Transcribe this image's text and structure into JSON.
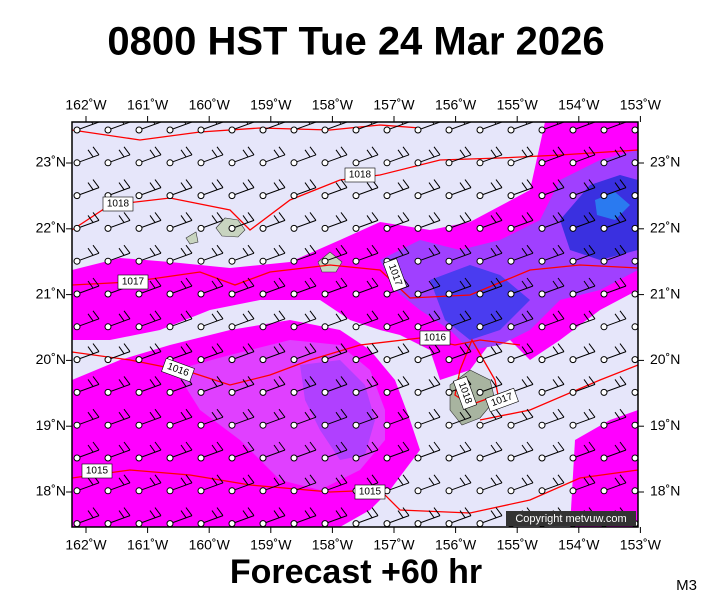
{
  "title": "0800 HST Tue 24 Mar 2026",
  "footer": "Forecast +60 hr",
  "model": "M3",
  "copyright": "Copyright metvuw.com",
  "lon_labels": [
    "162˚W",
    "161˚W",
    "160˚W",
    "159˚W",
    "158˚W",
    "157˚W",
    "156˚W",
    "155˚W",
    "154˚W",
    "153˚W"
  ],
  "lat_labels": [
    "23˚N",
    "22˚N",
    "21˚N",
    "20˚N",
    "19˚N",
    "18˚N"
  ],
  "isobar_labels": [
    "1018",
    "1018",
    "1017",
    "1017",
    "1016",
    "1016",
    "1015",
    "1015",
    "1018",
    "1017"
  ]
}
